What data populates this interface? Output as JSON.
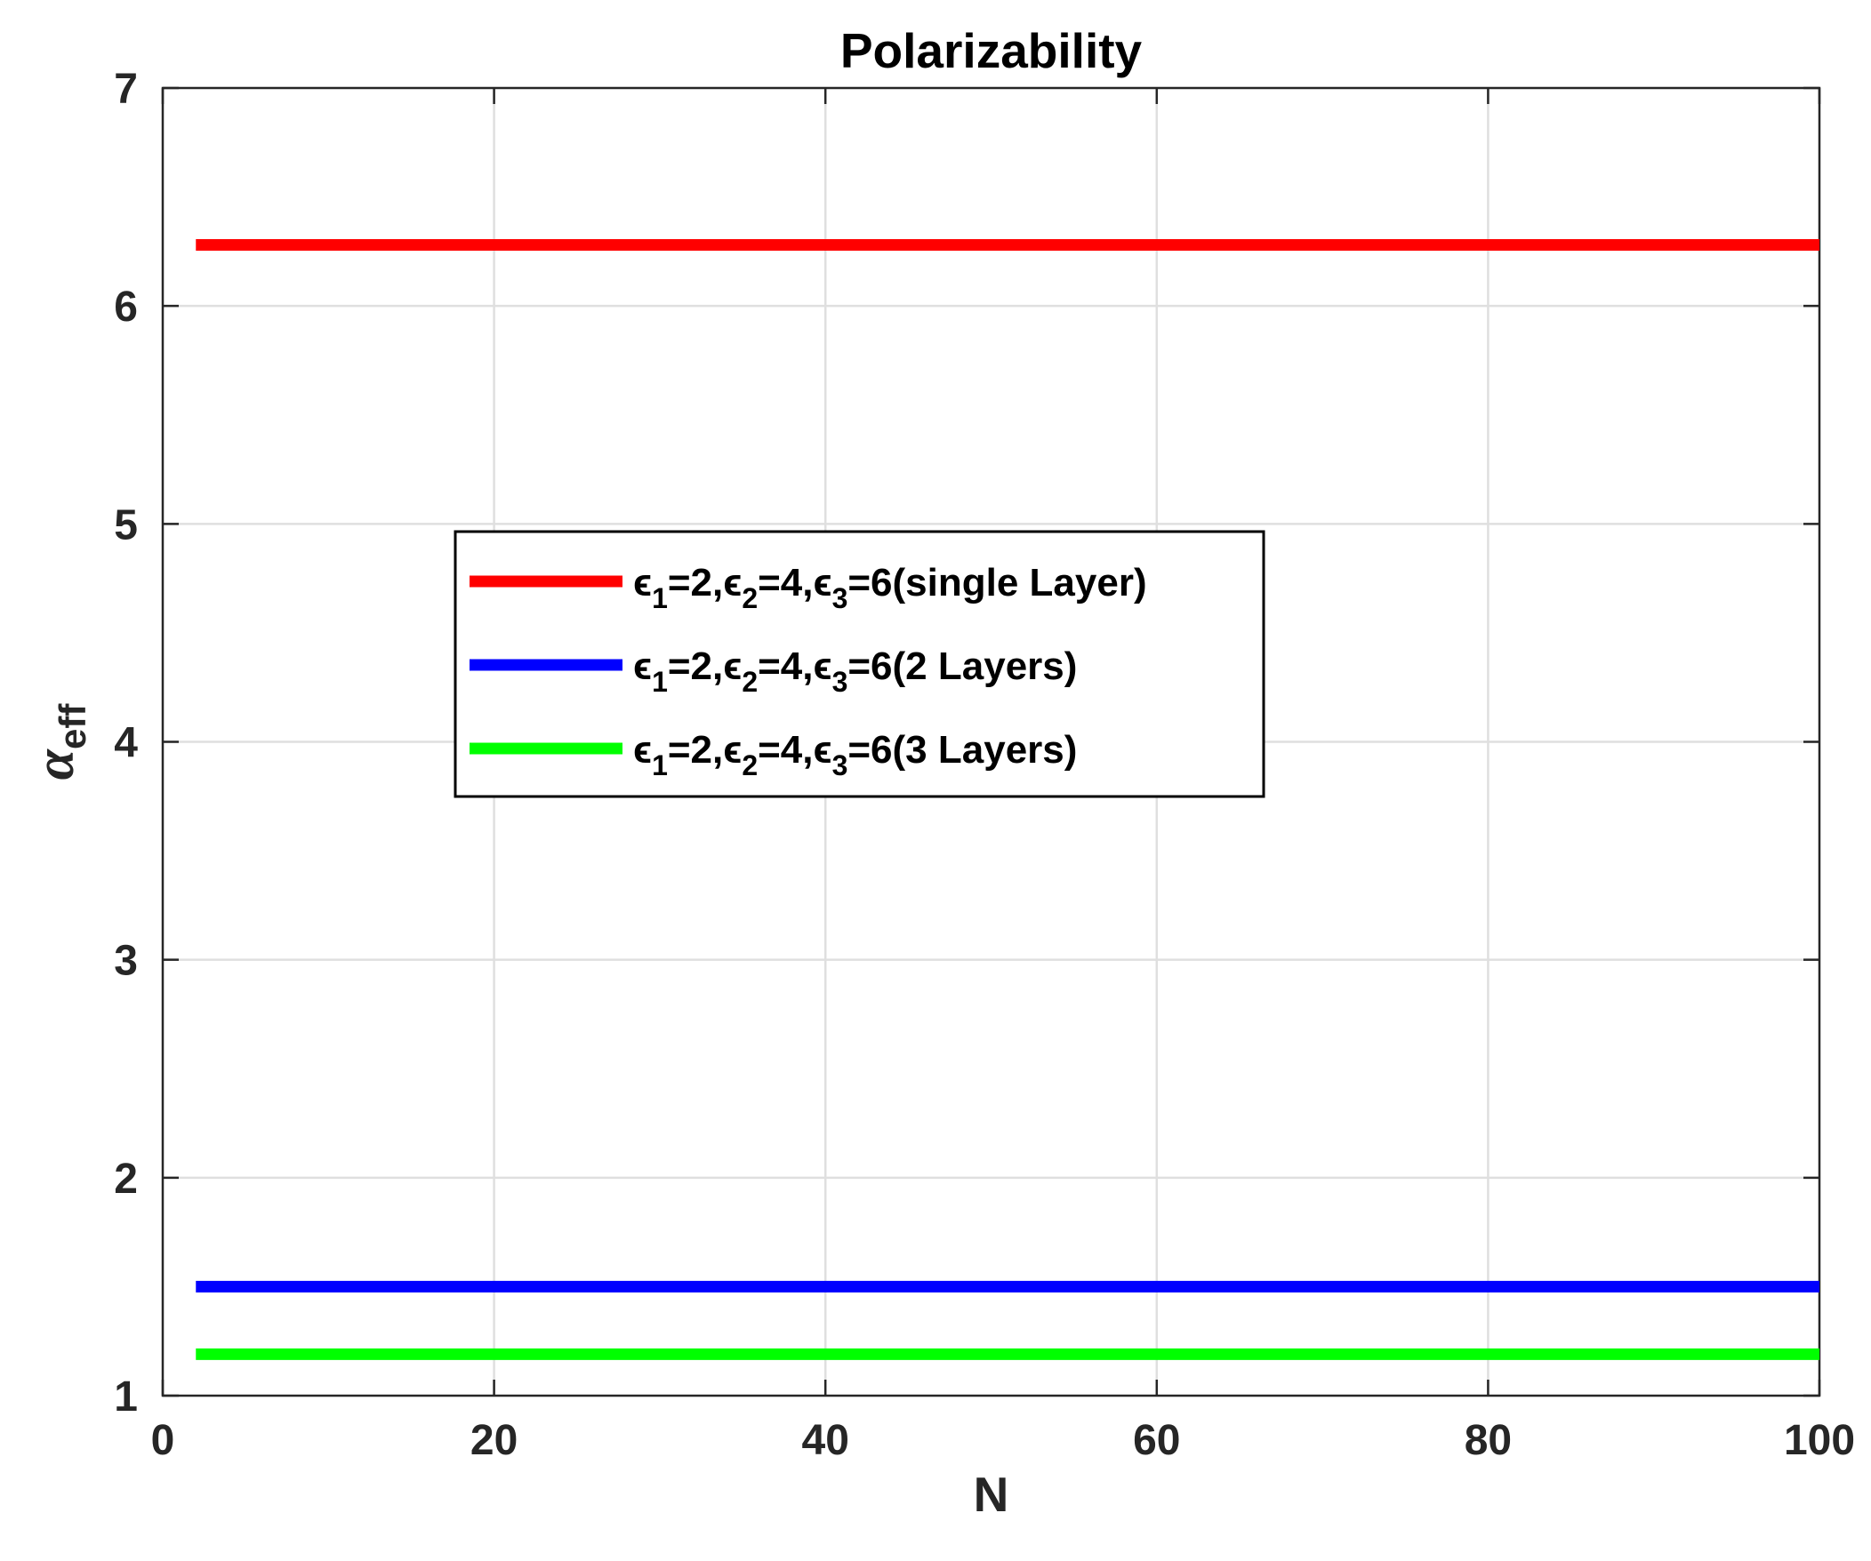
{
  "chart_data": {
    "type": "line",
    "title": "Polarizability",
    "xlabel": "N",
    "ylabel": {
      "symbol": "α",
      "subscript": "eff"
    },
    "xlim": [
      0,
      100
    ],
    "ylim": [
      1,
      7
    ],
    "xticks": [
      0,
      20,
      40,
      60,
      80,
      100
    ],
    "yticks": [
      1,
      2,
      3,
      4,
      5,
      6,
      7
    ],
    "grid": true,
    "legend_placement": "center-left",
    "x": [
      2,
      100
    ],
    "series": [
      {
        "name": "ϵ1=2,ϵ2=4,ϵ3=6(single Layer)",
        "legend": {
          "sym": "ϵ",
          "s1": "1",
          "p1": "=2,",
          "s2": "2",
          "p2": "=4,",
          "s3": "3",
          "tail": "=6(single Layer)"
        },
        "color": "#ff0000",
        "values": [
          6.28,
          6.28
        ]
      },
      {
        "name": "ϵ1=2,ϵ2=4,ϵ3=6(2 Layers)",
        "legend": {
          "sym": "ϵ",
          "s1": "1",
          "p1": "=2,",
          "s2": "2",
          "p2": "=4,",
          "s3": "3",
          "tail": "=6(2 Layers)"
        },
        "color": "#0000ff",
        "values": [
          1.5,
          1.5
        ]
      },
      {
        "name": "ϵ1=2,ϵ2=4,ϵ3=6(3 Layers)",
        "legend": {
          "sym": "ϵ",
          "s1": "1",
          "p1": "=2,",
          "s2": "2",
          "p2": "=4,",
          "s3": "3",
          "tail": "=6(3 Layers)"
        },
        "color": "#00ff00",
        "values": [
          1.19,
          1.19
        ]
      }
    ]
  }
}
